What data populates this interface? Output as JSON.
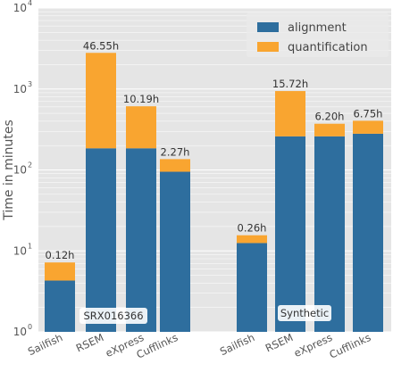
{
  "chart_data": {
    "type": "bar",
    "stacked": true,
    "yscale": "log",
    "ylim": [
      1,
      10000
    ],
    "ylabel": "Time in minutes",
    "xlabel": "",
    "title": "",
    "grid": true,
    "legend_position": "top-right",
    "y_ticks": [
      {
        "value": 1,
        "base": "10",
        "exp": "0"
      },
      {
        "value": 10,
        "base": "10",
        "exp": "1"
      },
      {
        "value": 100,
        "base": "10",
        "exp": "2"
      },
      {
        "value": 1000,
        "base": "10",
        "exp": "3"
      },
      {
        "value": 10000,
        "base": "10",
        "exp": "4"
      }
    ],
    "series": [
      {
        "name": "alignment",
        "color": "#2e6e9e"
      },
      {
        "name": "quantification",
        "color": "#f9a530"
      }
    ],
    "groups": [
      {
        "label": "SRX016366",
        "bars": [
          {
            "category": "Sailfish",
            "alignment": 4.3,
            "total": 7.2,
            "label": "0.12h"
          },
          {
            "category": "RSEM",
            "alignment": 185,
            "total": 2793,
            "label": "46.55h"
          },
          {
            "category": "eXpress",
            "alignment": 185,
            "total": 611,
            "label": "10.19h"
          },
          {
            "category": "Cufflinks",
            "alignment": 95,
            "total": 136,
            "label": "2.27h"
          }
        ]
      },
      {
        "label": "Synthetic",
        "bars": [
          {
            "category": "Sailfish",
            "alignment": 12.5,
            "total": 15.6,
            "label": "0.26h"
          },
          {
            "category": "RSEM",
            "alignment": 260,
            "total": 943,
            "label": "15.72h"
          },
          {
            "category": "eXpress",
            "alignment": 260,
            "total": 372,
            "label": "6.20h"
          },
          {
            "category": "Cufflinks",
            "alignment": 280,
            "total": 405,
            "label": "6.75h"
          }
        ]
      }
    ]
  }
}
